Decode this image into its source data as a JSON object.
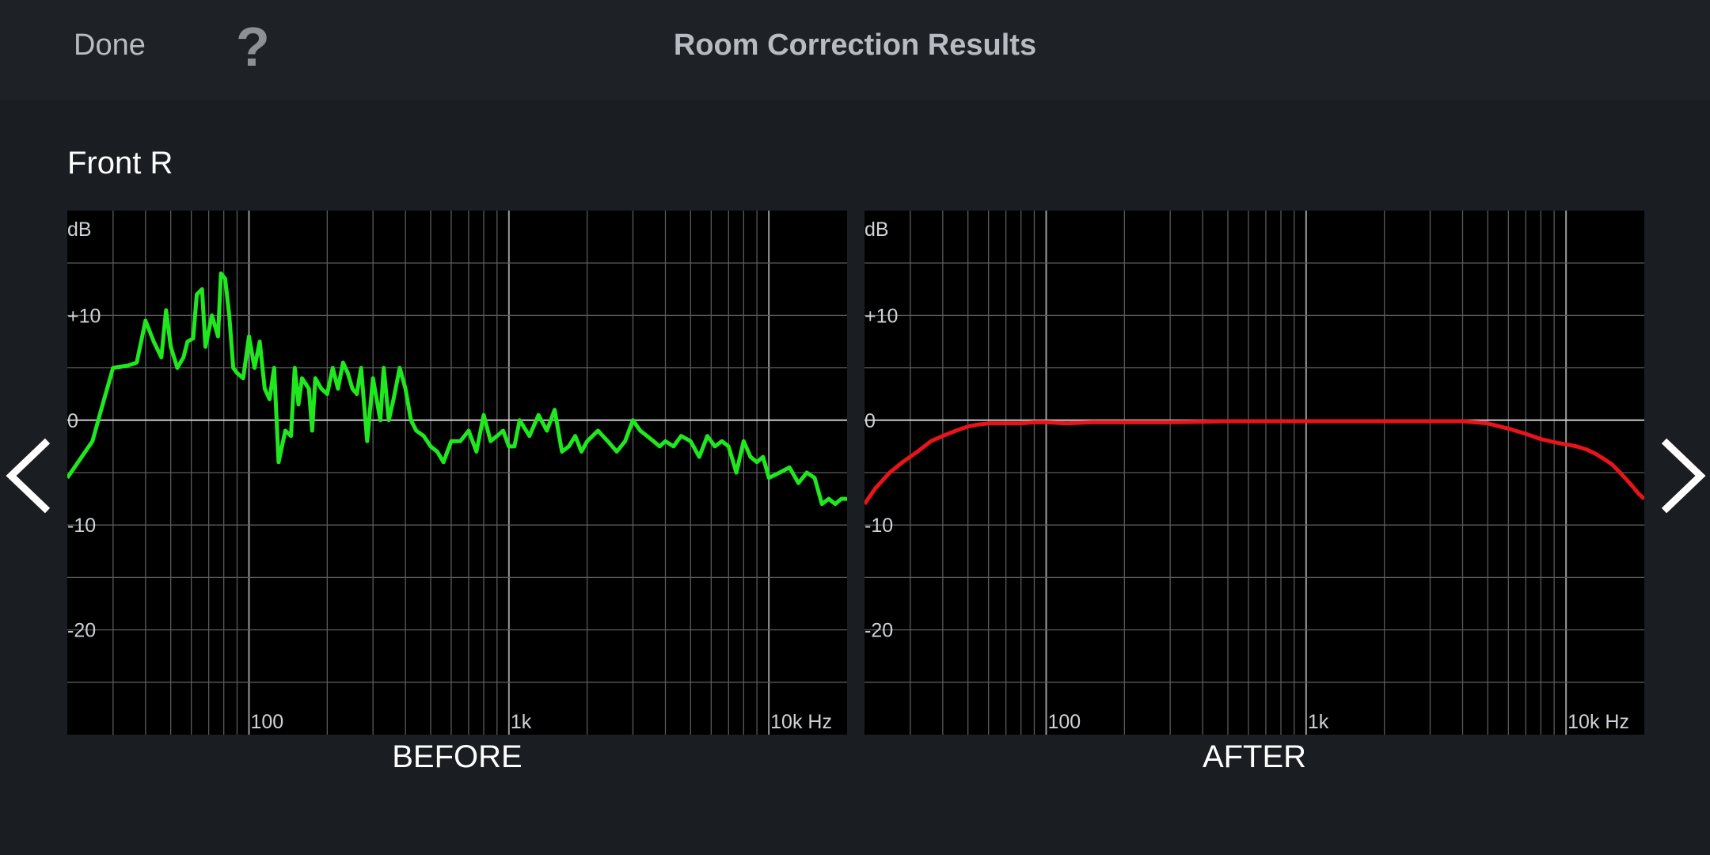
{
  "header": {
    "done_label": "Done",
    "help_label": "?",
    "title": "Room Correction Results"
  },
  "channel": "Front R",
  "colors": {
    "before_curve": "#1fe81f",
    "after_curve": "#e8141a",
    "grid": "#5a5a5a",
    "zero_line": "#c8c8c8"
  },
  "chart_data": [
    {
      "type": "line",
      "title": "BEFORE",
      "ylabel": "dB",
      "xscale": "log",
      "xlim": [
        20,
        20000
      ],
      "ylim": [
        -30,
        20
      ],
      "yticks": [
        {
          "value": 10,
          "label": "+10"
        },
        {
          "value": 0,
          "label": "0"
        },
        {
          "value": -10,
          "label": "-10"
        },
        {
          "value": -20,
          "label": "-20"
        }
      ],
      "xticks": [
        {
          "value": 100,
          "label": "100"
        },
        {
          "value": 1000,
          "label": "1k"
        },
        {
          "value": 10000,
          "label": "10k Hz"
        }
      ],
      "series": [
        {
          "x": [
            20,
            22,
            25,
            27,
            30,
            34,
            37,
            40,
            43,
            46,
            48,
            50,
            53,
            56,
            58,
            61,
            63,
            66,
            68,
            72,
            76,
            78,
            81,
            84,
            87,
            90,
            95,
            100,
            105,
            110,
            115,
            120,
            125,
            130,
            138,
            145,
            150,
            155,
            160,
            170,
            175,
            180,
            190,
            200,
            210,
            220,
            230,
            240,
            250,
            260,
            270,
            285,
            300,
            320,
            330,
            345,
            360,
            380,
            400,
            420,
            440,
            470,
            500,
            530,
            560,
            600,
            650,
            700,
            750,
            800,
            850,
            900,
            950,
            1000,
            1050,
            1100,
            1200,
            1300,
            1400,
            1500,
            1600,
            1700,
            1800,
            1900,
            2000,
            2200,
            2400,
            2600,
            2800,
            3000,
            3200,
            3400,
            3600,
            3800,
            4000,
            4300,
            4600,
            5000,
            5400,
            5800,
            6200,
            6600,
            7000,
            7500,
            8000,
            8500,
            9000,
            9500,
            10000,
            11000,
            12000,
            13000,
            14000,
            15000,
            16000,
            17000,
            18000,
            19000,
            20000
          ],
          "y": [
            -5.5,
            -4,
            -2,
            1,
            5,
            5.2,
            5.5,
            9.5,
            7.5,
            6,
            10.5,
            7,
            5,
            6,
            7.5,
            7.8,
            12,
            12.5,
            7,
            10,
            8,
            14,
            13.5,
            10,
            5,
            4.5,
            4,
            8,
            5,
            7.5,
            3,
            2,
            5,
            -4,
            -1,
            -1.5,
            5,
            1.5,
            4,
            3,
            -1,
            4,
            3,
            2.5,
            5,
            3,
            5.5,
            4.5,
            3,
            2.5,
            5,
            -2,
            4,
            0,
            5,
            0,
            2,
            5,
            3,
            0,
            -1,
            -1.5,
            -2.5,
            -3,
            -4,
            -2,
            -2,
            -1,
            -3,
            0.5,
            -2,
            -1.5,
            -1,
            -2.5,
            -2.5,
            0,
            -1.5,
            0.5,
            -1,
            1,
            -3,
            -2.5,
            -1.5,
            -3,
            -2,
            -1,
            -2,
            -3,
            -2,
            0,
            -1,
            -1.5,
            -2,
            -2.5,
            -2,
            -2.5,
            -1.5,
            -2,
            -3.5,
            -1.5,
            -2.5,
            -2,
            -2.5,
            -5,
            -2,
            -3.5,
            -4,
            -3.5,
            -5.5,
            -5,
            -4.5,
            -6,
            -5,
            -5.5,
            -8,
            -7.5,
            -8,
            -7.5,
            -7.5
          ]
        }
      ]
    },
    {
      "type": "line",
      "title": "AFTER",
      "ylabel": "dB",
      "xscale": "log",
      "xlim": [
        20,
        20000
      ],
      "ylim": [
        -30,
        20
      ],
      "yticks": [
        {
          "value": 10,
          "label": "+10"
        },
        {
          "value": 0,
          "label": "0"
        },
        {
          "value": -10,
          "label": "-10"
        },
        {
          "value": -20,
          "label": "-20"
        }
      ],
      "xticks": [
        {
          "value": 100,
          "label": "100"
        },
        {
          "value": 1000,
          "label": "1k"
        },
        {
          "value": 10000,
          "label": "10k Hz"
        }
      ],
      "series": [
        {
          "x": [
            20,
            22,
            25,
            28,
            32,
            36,
            40,
            45,
            50,
            55,
            60,
            70,
            80,
            90,
            100,
            120,
            150,
            200,
            300,
            500,
            700,
            1000,
            1500,
            2000,
            3000,
            4000,
            5000,
            6000,
            7000,
            8000,
            9000,
            10000,
            11000,
            12000,
            13000,
            14000,
            15000,
            16000,
            17000,
            18000,
            19000,
            20000
          ],
          "y": [
            -8,
            -6.5,
            -5,
            -4,
            -3,
            -2,
            -1.5,
            -1,
            -0.6,
            -0.4,
            -0.3,
            -0.3,
            -0.3,
            -0.2,
            -0.2,
            -0.3,
            -0.2,
            -0.2,
            -0.2,
            -0.1,
            -0.1,
            -0.1,
            -0.1,
            -0.1,
            -0.1,
            -0.1,
            -0.3,
            -0.8,
            -1.3,
            -1.8,
            -2.1,
            -2.3,
            -2.5,
            -2.8,
            -3.2,
            -3.7,
            -4.2,
            -4.9,
            -5.6,
            -6.3,
            -7,
            -7.5
          ]
        }
      ]
    }
  ]
}
